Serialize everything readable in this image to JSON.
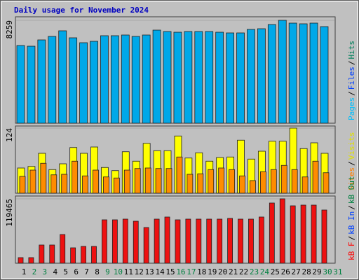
{
  "title": "Daily usage for November 2024",
  "legend_separator": "/",
  "categories": [
    "1",
    "2",
    "3",
    "4",
    "5",
    "6",
    "7",
    "8",
    "9",
    "10",
    "11",
    "12",
    "13",
    "14",
    "15",
    "16",
    "17",
    "18",
    "19",
    "20",
    "21",
    "22",
    "23",
    "24",
    "25",
    "26",
    "27",
    "28",
    "29",
    "30",
    "31"
  ],
  "category_colors": [
    "#000000",
    "#008040",
    "#008040",
    "#000000",
    "#000000",
    "#000000",
    "#000000",
    "#000000",
    "#008040",
    "#008040",
    "#000000",
    "#000000",
    "#000000",
    "#000000",
    "#000000",
    "#008040",
    "#008040",
    "#000000",
    "#000000",
    "#000000",
    "#000000",
    "#000000",
    "#008040",
    "#008040",
    "#000000",
    "#000000",
    "#000000",
    "#000000",
    "#000000",
    "#008040",
    "#008040"
  ],
  "chart_data": [
    {
      "type": "bar",
      "ylim": [
        0,
        8259
      ],
      "yticks": [
        8259
      ],
      "legend": [
        {
          "name": "Pages",
          "color": "#00c0ff"
        },
        {
          "name": "Files",
          "color": "#0040ff"
        },
        {
          "name": "Hits",
          "color": "#00805c"
        }
      ],
      "series": [
        {
          "name": "Files",
          "color": "#00a8e8",
          "values": [
            6236,
            6180,
            6685,
            6966,
            7416,
            6854,
            6461,
            6573,
            7023,
            7023,
            7079,
            6966,
            7079,
            7472,
            7360,
            7303,
            7360,
            7360,
            7360,
            7303,
            7247,
            7247,
            7528,
            7584,
            7921,
            8259,
            8034,
            7978,
            8034,
            7753,
            null
          ]
        }
      ]
    },
    {
      "type": "bar",
      "ylim": [
        0,
        124
      ],
      "yticks": [
        124
      ],
      "legend": [
        {
          "name": "Sites",
          "color": "#ff8000"
        },
        {
          "name": "Visits",
          "color": "#e0e000"
        }
      ],
      "series": [
        {
          "name": "Visits",
          "color": "#ffff00",
          "values": [
            48,
            51,
            76,
            45,
            56,
            87,
            76,
            88,
            49,
            43,
            79,
            61,
            95,
            81,
            81,
            109,
            67,
            77,
            61,
            68,
            69,
            101,
            65,
            80,
            99,
            99,
            124,
            85,
            96,
            76,
            null
          ]
        },
        {
          "name": "Sites",
          "color": "#ff8c00",
          "values": [
            32,
            44,
            57,
            35,
            36,
            61,
            33,
            44,
            31,
            29,
            44,
            47,
            48,
            47,
            47,
            69,
            36,
            37,
            45,
            48,
            45,
            33,
            24,
            41,
            45,
            53,
            45,
            31,
            61,
            39,
            null
          ]
        }
      ]
    },
    {
      "type": "bar",
      "ylim": [
        0,
        119465
      ],
      "yticks": [
        119465
      ],
      "legend": [
        {
          "name": "kB F",
          "color": "#ff0000"
        },
        {
          "name": "kB In",
          "color": "#0040ff"
        },
        {
          "name": "kB Out",
          "color": "#008040"
        }
      ],
      "series": [
        {
          "name": "kB F",
          "color": "#ee1111",
          "values": [
            10388,
            10388,
            33761,
            33761,
            53239,
            28567,
            31164,
            31164,
            80507,
            80507,
            81806,
            77910,
            66224,
            81806,
            85701,
            80507,
            81806,
            81806,
            81806,
            81806,
            83104,
            81806,
            81806,
            85701,
            111671,
            119465,
            106477,
            107776,
            107776,
            98686,
            null
          ]
        }
      ]
    }
  ]
}
